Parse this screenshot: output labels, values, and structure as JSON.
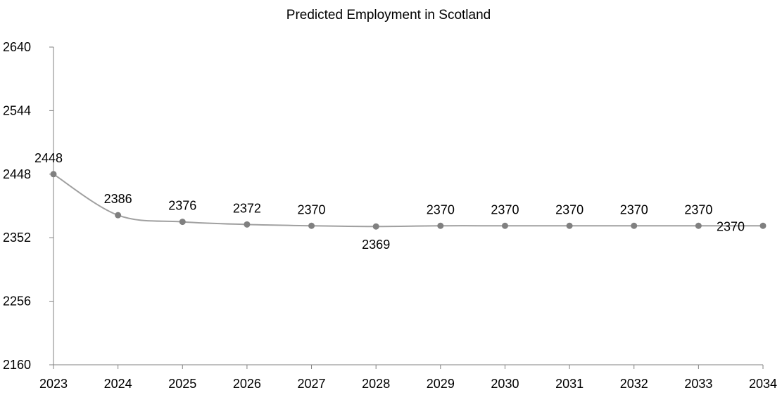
{
  "chart_data": {
    "type": "line",
    "title": "Predicted Employment in Scotland",
    "xlabel": "",
    "ylabel": "",
    "categories": [
      "2023",
      "2024",
      "2025",
      "2026",
      "2027",
      "2028",
      "2029",
      "2030",
      "2031",
      "2032",
      "2033",
      "2034"
    ],
    "series": [
      {
        "values": [
          2448,
          2386,
          2376,
          2372,
          2370,
          2369,
          2370,
          2370,
          2370,
          2370,
          2370,
          2370
        ]
      }
    ],
    "ylim": [
      2160,
      2640
    ],
    "yticks": [
      2160,
      2256,
      2352,
      2448,
      2544,
      2640
    ],
    "grid": false,
    "legend": "none",
    "colors": {
      "line": "#a0a0a0",
      "marker": "#808080",
      "axis": "#808080",
      "text": "#000000"
    }
  }
}
